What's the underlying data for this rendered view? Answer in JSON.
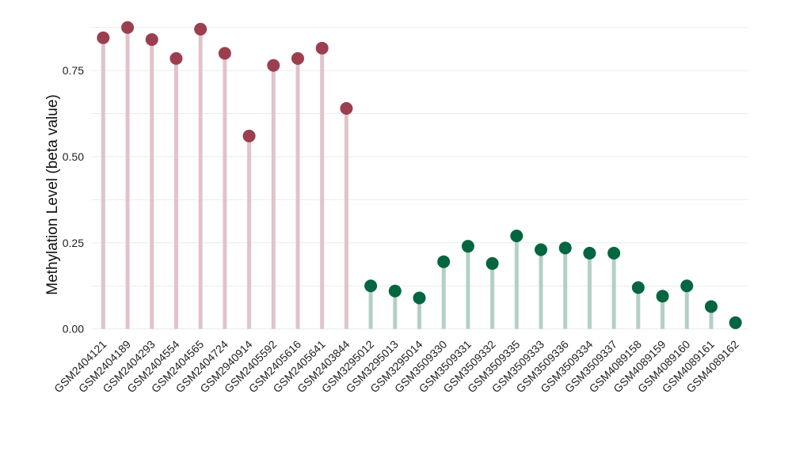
{
  "chart_data": {
    "type": "lollipop",
    "title": "",
    "xlabel": "",
    "ylabel": "Methylation Level (beta value)",
    "ylim": [
      -0.01,
      0.895
    ],
    "y_ticks": [
      0.0,
      0.25,
      0.5,
      0.75
    ],
    "y_tick_labels": [
      "0.00",
      "0.25",
      "0.50",
      "0.75"
    ],
    "grid": true,
    "legend": "none",
    "categories": [
      "GSM2404121",
      "GSM2404189",
      "GSM2404293",
      "GSM2404554",
      "GSM2404565",
      "GSM2404724",
      "GSM2940914",
      "GSM2405592",
      "GSM2405616",
      "GSM2405641",
      "GSM2403844",
      "GSM3295012",
      "GSM3295013",
      "GSM3295014",
      "GSM3509330",
      "GSM3509331",
      "GSM3509332",
      "GSM3509335",
      "GSM3509333",
      "GSM3509336",
      "GSM3509334",
      "GSM3509337",
      "GSM4089158",
      "GSM4089159",
      "GSM4089160",
      "GSM4089161",
      "GSM4089162"
    ],
    "values": [
      0.845,
      0.875,
      0.84,
      0.785,
      0.87,
      0.8,
      0.56,
      0.765,
      0.785,
      0.815,
      0.64,
      0.125,
      0.11,
      0.09,
      0.195,
      0.24,
      0.19,
      0.27,
      0.23,
      0.235,
      0.22,
      0.22,
      0.12,
      0.095,
      0.125,
      0.065,
      0.018
    ],
    "groups": [
      "high",
      "high",
      "high",
      "high",
      "high",
      "high",
      "high",
      "high",
      "high",
      "high",
      "high",
      "low",
      "low",
      "low",
      "low",
      "low",
      "low",
      "low",
      "low",
      "low",
      "low",
      "low",
      "low",
      "low",
      "low",
      "low",
      "low"
    ],
    "colors": {
      "high_point": "#9b3f4e",
      "high_stem": "#e1c3ca",
      "low_point": "#036640",
      "low_stem": "#b2d1c4",
      "grid": "#ebebeb"
    }
  }
}
